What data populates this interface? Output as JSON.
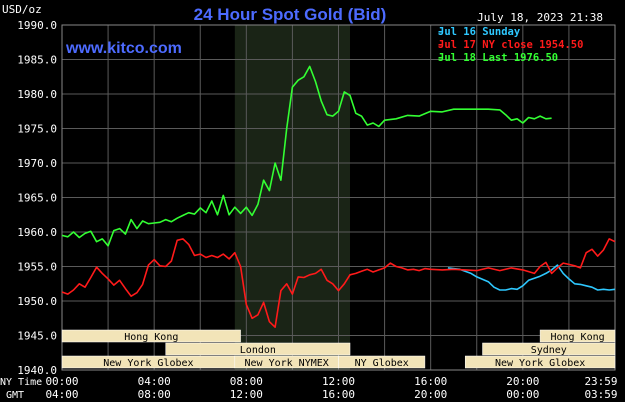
{
  "header": {
    "unit": "USD/oz",
    "title": "24 Hour Spot Gold (Bid)",
    "datetime": "July 18, 2023 21:38",
    "brand": "www.kitco.com"
  },
  "colors": {
    "background": "#000000",
    "grid": "#5a5a5a",
    "title": "#4d6bff",
    "brand": "#4d6bff",
    "sunday": "#2ec8ff",
    "ny_close": "#ff1a1a",
    "last": "#33ff33",
    "session_fill": "#f2e4b8",
    "highlight": "#1a2416"
  },
  "legend": [
    {
      "label": "Jul 16 Sunday",
      "color": "#2ec8ff"
    },
    {
      "label": "Jul 17 NY close 1954.50",
      "color": "#ff1a1a"
    },
    {
      "label": "Jul 18 Last 1976.50",
      "color": "#33ff33"
    }
  ],
  "sessions": [
    {
      "label": "Hong Kong",
      "row": 0,
      "start": 0,
      "end": 7.75
    },
    {
      "label": "Hong Kong",
      "row": 0,
      "start": 20.75,
      "end": 24
    },
    {
      "label": "London",
      "row": 1,
      "start": 4.5,
      "end": 12.5
    },
    {
      "label": "Sydney",
      "row": 1,
      "start": 18.25,
      "end": 24
    },
    {
      "label": "New York Globex",
      "row": 2,
      "start": 0,
      "end": 7.5
    },
    {
      "label": "New York NYMEX",
      "row": 2,
      "start": 7.5,
      "end": 12.0
    },
    {
      "label": "NY Globex",
      "row": 2,
      "start": 12.0,
      "end": 15.75
    },
    {
      "label": "New York Globex",
      "row": 2,
      "start": 17.5,
      "end": 24
    }
  ],
  "footer": {
    "ny_time_label": "NY Time",
    "gmt_label": "GMT",
    "ny_ticks": [
      "00:00",
      "04:00",
      "08:00",
      "12:00",
      "16:00",
      "20:00",
      "23:59"
    ],
    "gmt_ticks": [
      "04:00",
      "08:00",
      "12:00",
      "16:00",
      "20:00",
      "00:00",
      "03:59"
    ]
  },
  "chart_data": {
    "type": "line",
    "title": "24 Hour Spot Gold (Bid)",
    "ylabel": "USD/oz",
    "xlabel": "NY Time",
    "xlim": [
      0,
      24
    ],
    "ylim": [
      1940,
      1990
    ],
    "yticks": [
      "1940.0",
      "1945.0",
      "1950.0",
      "1955.0",
      "1960.0",
      "1965.0",
      "1970.0",
      "1975.0",
      "1980.0",
      "1985.0",
      "1990.0"
    ],
    "grid": true,
    "legend_position": "top-right",
    "highlight_range_hours": [
      7.5,
      12.5
    ],
    "series": [
      {
        "name": "Jul 16 Sunday",
        "color": "#2ec8ff",
        "x": [
          16.75,
          17.25,
          17.75,
          18.0,
          18.5,
          18.75,
          19.0,
          19.25,
          19.5,
          19.75,
          20.0,
          20.25,
          20.5,
          20.75,
          21.0,
          21.25,
          21.5,
          21.75,
          22.0,
          22.25,
          22.5,
          22.75,
          23.0,
          23.25,
          23.5,
          23.75,
          24.0
        ],
        "values": [
          1954.8,
          1954.6,
          1954.0,
          1953.5,
          1952.8,
          1952.0,
          1951.6,
          1951.6,
          1951.8,
          1951.7,
          1952.2,
          1953.0,
          1953.3,
          1953.6,
          1954.0,
          1954.5,
          1955.2,
          1954.0,
          1953.2,
          1952.5,
          1952.4,
          1952.2,
          1952.0,
          1951.6,
          1951.7,
          1951.6,
          1951.7
        ]
      },
      {
        "name": "Jul 17 NY close 1954.50",
        "color": "#ff1a1a",
        "x": [
          0.0,
          0.25,
          0.5,
          0.75,
          1.0,
          1.25,
          1.5,
          1.75,
          2.0,
          2.25,
          2.5,
          2.75,
          3.0,
          3.25,
          3.5,
          3.75,
          4.0,
          4.25,
          4.5,
          4.75,
          5.0,
          5.25,
          5.5,
          5.75,
          6.0,
          6.25,
          6.5,
          6.75,
          7.0,
          7.25,
          7.5,
          7.75,
          8.0,
          8.25,
          8.5,
          8.75,
          9.0,
          9.25,
          9.5,
          9.75,
          10.0,
          10.25,
          10.5,
          10.75,
          11.0,
          11.25,
          11.5,
          11.75,
          12.0,
          12.25,
          12.5,
          12.75,
          13.0,
          13.25,
          13.5,
          13.75,
          14.0,
          14.25,
          14.5,
          14.75,
          15.0,
          15.25,
          15.5,
          15.75,
          16.0,
          16.5,
          17.0,
          17.5,
          18.0,
          18.5,
          19.0,
          19.5,
          20.0,
          20.5,
          20.75,
          21.0,
          21.25,
          21.5,
          21.75,
          22.0,
          22.25,
          22.5,
          22.75,
          23.0,
          23.25,
          23.5,
          23.75,
          24.0
        ],
        "values": [
          1951.3,
          1951.0,
          1951.6,
          1952.5,
          1952.0,
          1953.4,
          1954.9,
          1954.0,
          1953.2,
          1952.3,
          1953.0,
          1951.8,
          1950.7,
          1951.2,
          1952.4,
          1955.2,
          1956.0,
          1955.1,
          1955.0,
          1955.8,
          1958.8,
          1959.0,
          1958.2,
          1956.6,
          1956.8,
          1956.3,
          1956.6,
          1956.3,
          1956.8,
          1956.1,
          1957.0,
          1955.0,
          1949.5,
          1947.5,
          1948.0,
          1949.8,
          1947.0,
          1946.2,
          1951.5,
          1952.5,
          1951.0,
          1953.5,
          1953.4,
          1953.8,
          1954.0,
          1954.6,
          1953.0,
          1952.5,
          1951.5,
          1952.5,
          1953.8,
          1954.0,
          1954.3,
          1954.6,
          1954.2,
          1954.5,
          1954.8,
          1955.5,
          1955.0,
          1954.8,
          1954.5,
          1954.6,
          1954.4,
          1954.7,
          1954.6,
          1954.5,
          1954.6,
          1954.5,
          1954.4,
          1954.8,
          1954.4,
          1954.8,
          1954.5,
          1954.0,
          1955.0,
          1955.6,
          1954.0,
          1954.8,
          1955.5,
          1955.3,
          1955.1,
          1954.8,
          1957.0,
          1957.5,
          1956.5,
          1957.4,
          1959.0,
          1958.6
        ]
      },
      {
        "name": "Jul 18 Last 1976.50",
        "color": "#33ff33",
        "x": [
          0.0,
          0.25,
          0.5,
          0.75,
          1.0,
          1.25,
          1.5,
          1.75,
          2.0,
          2.25,
          2.5,
          2.75,
          3.0,
          3.25,
          3.5,
          3.75,
          4.0,
          4.25,
          4.5,
          4.75,
          5.0,
          5.25,
          5.5,
          5.75,
          6.0,
          6.25,
          6.5,
          6.75,
          7.0,
          7.25,
          7.5,
          7.75,
          8.0,
          8.25,
          8.5,
          8.75,
          9.0,
          9.25,
          9.5,
          9.75,
          10.0,
          10.25,
          10.5,
          10.75,
          11.0,
          11.25,
          11.5,
          11.75,
          12.0,
          12.25,
          12.5,
          12.75,
          13.0,
          13.25,
          13.5,
          13.75,
          14.0,
          14.5,
          15.0,
          15.5,
          16.0,
          16.5,
          17.0,
          17.5,
          18.0,
          18.5,
          19.0,
          19.25,
          19.5,
          19.75,
          20.0,
          20.25,
          20.5,
          20.75,
          21.0,
          21.25
        ],
        "values": [
          1959.5,
          1959.3,
          1960.0,
          1959.2,
          1959.8,
          1960.1,
          1958.6,
          1959.0,
          1958.0,
          1960.2,
          1960.5,
          1959.7,
          1961.8,
          1960.5,
          1961.6,
          1961.2,
          1961.3,
          1961.4,
          1961.8,
          1961.5,
          1962.0,
          1962.4,
          1962.8,
          1962.6,
          1963.5,
          1962.8,
          1964.5,
          1962.5,
          1965.3,
          1962.5,
          1963.6,
          1962.7,
          1963.6,
          1962.4,
          1964.0,
          1967.5,
          1966.0,
          1970.0,
          1967.5,
          1975.0,
          1981.0,
          1982.0,
          1982.5,
          1984.0,
          1981.8,
          1979.0,
          1977.0,
          1976.8,
          1977.5,
          1980.3,
          1979.8,
          1977.2,
          1976.8,
          1975.5,
          1975.8,
          1975.3,
          1976.2,
          1976.4,
          1976.9,
          1976.8,
          1977.5,
          1977.4,
          1977.8,
          1977.8,
          1977.8,
          1977.8,
          1977.7,
          1977.0,
          1976.2,
          1976.4,
          1975.8,
          1976.6,
          1976.4,
          1976.8,
          1976.4,
          1976.5
        ]
      }
    ]
  }
}
